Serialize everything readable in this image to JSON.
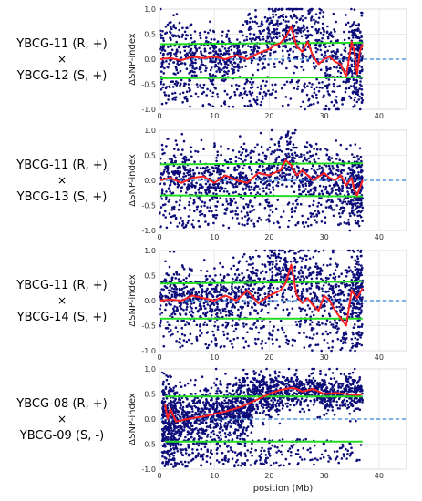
{
  "chart_data": [
    {
      "type": "scatter",
      "cross": {
        "parent1": "YBCG-11 (R, +)",
        "symbol": "×",
        "parent2": "YBCG-12 (S, +)"
      },
      "xlabel": "",
      "ylabel": "ΔSNP-index",
      "xlim": [
        0,
        45
      ],
      "ylim": [
        -1.0,
        1.0
      ],
      "xticks": [
        "0",
        "10",
        "20",
        "30",
        "40"
      ],
      "yticks": [
        "1.0",
        "0.5",
        "0.0",
        "-0.5",
        "-1.0"
      ],
      "grid": true,
      "colors": {
        "points": "#0c0c7a",
        "smoothed": "#ff2020",
        "threshold": "#22dd22",
        "zero_line": "#3388dd"
      },
      "threshold_upper": {
        "x": [
          0,
          37
        ],
        "y": [
          0.3,
          0.33
        ]
      },
      "threshold_lower": {
        "x": [
          0,
          37
        ],
        "y": [
          -0.38,
          -0.36
        ]
      },
      "zero_line": {
        "x": [
          0,
          45
        ],
        "y": [
          0,
          0
        ]
      },
      "smoothed": {
        "x": [
          0,
          2,
          4,
          6,
          8,
          10,
          12,
          14,
          16,
          18,
          20,
          21,
          22,
          23,
          24,
          25,
          26,
          27,
          28,
          29,
          30,
          31,
          32,
          33,
          34,
          35,
          35.5,
          36,
          36.5,
          37
        ],
        "y": [
          0.0,
          0.02,
          -0.02,
          0.05,
          0.02,
          0.05,
          0.0,
          0.08,
          0.0,
          0.12,
          0.2,
          0.28,
          0.32,
          0.45,
          0.65,
          0.25,
          0.15,
          0.35,
          0.05,
          -0.1,
          0.0,
          0.05,
          -0.05,
          -0.1,
          -0.35,
          0.35,
          0.15,
          -0.3,
          0.15,
          0.3
        ]
      },
      "points": {
        "segments": [
          [
            0,
            5,
            0.2,
            0.3
          ],
          [
            5,
            10,
            0.05,
            0.3
          ],
          [
            10,
            15,
            0.05,
            0.25
          ],
          [
            15,
            20,
            0.25,
            0.35
          ],
          [
            20,
            25,
            0.55,
            0.35
          ],
          [
            25,
            30,
            0.3,
            0.45
          ],
          [
            30,
            35,
            -0.05,
            0.45
          ],
          [
            35,
            37,
            0.1,
            0.4
          ]
        ],
        "count": 1400,
        "seed": 11
      }
    },
    {
      "type": "scatter",
      "cross": {
        "parent1": "YBCG-11 (R, +)",
        "symbol": "×",
        "parent2": "YBCG-13 (S, +)"
      },
      "xlabel": "",
      "ylabel": "ΔSNP-index",
      "xlim": [
        0,
        45
      ],
      "ylim": [
        -1.0,
        1.0
      ],
      "xticks": [
        "0",
        "10",
        "20",
        "30",
        "40"
      ],
      "yticks": [
        "1.0",
        "0.5",
        "0.0",
        "-0.5",
        "-1.0"
      ],
      "grid": true,
      "colors": {
        "points": "#0c0c7a",
        "smoothed": "#ff2020",
        "threshold": "#22dd22",
        "zero_line": "#3388dd"
      },
      "threshold_upper": {
        "x": [
          0,
          37
        ],
        "y": [
          0.32,
          0.34
        ]
      },
      "threshold_lower": {
        "x": [
          0,
          37
        ],
        "y": [
          -0.3,
          -0.32
        ]
      },
      "zero_line": {
        "x": [
          0,
          45
        ],
        "y": [
          0,
          0
        ]
      },
      "smoothed": {
        "x": [
          0,
          2,
          4,
          6,
          8,
          10,
          12,
          14,
          16,
          18,
          20,
          22,
          23,
          24,
          25,
          26,
          28,
          30,
          31,
          32,
          33,
          34,
          35,
          35.5,
          36,
          37
        ],
        "y": [
          0.0,
          0.05,
          -0.05,
          0.05,
          0.08,
          -0.05,
          0.1,
          0.0,
          -0.05,
          0.15,
          0.1,
          0.2,
          0.4,
          0.3,
          0.1,
          0.2,
          0.0,
          0.15,
          0.05,
          0.0,
          0.1,
          -0.1,
          0.05,
          -0.2,
          -0.3,
          0.0
        ]
      },
      "points": {
        "segments": [
          [
            0,
            5,
            0.1,
            0.3
          ],
          [
            5,
            10,
            0.0,
            0.28
          ],
          [
            10,
            15,
            0.05,
            0.25
          ],
          [
            15,
            20,
            0.1,
            0.3
          ],
          [
            20,
            25,
            0.3,
            0.3
          ],
          [
            25,
            30,
            0.1,
            0.35
          ],
          [
            30,
            35,
            0.0,
            0.35
          ],
          [
            35,
            37,
            -0.05,
            0.3
          ]
        ],
        "count": 1400,
        "seed": 23
      }
    },
    {
      "type": "scatter",
      "cross": {
        "parent1": "YBCG-11 (R, +)",
        "symbol": "×",
        "parent2": "YBCG-14 (S, +)"
      },
      "xlabel": "",
      "ylabel": "ΔSNP-index",
      "xlim": [
        0,
        45
      ],
      "ylim": [
        -1.0,
        1.0
      ],
      "xticks": [
        "0",
        "10",
        "20",
        "30",
        "40"
      ],
      "yticks": [
        "1.0",
        "0.5",
        "0.0",
        "-0.5",
        "-1.0"
      ],
      "grid": true,
      "colors": {
        "points": "#0c0c7a",
        "smoothed": "#ff2020",
        "threshold": "#22dd22",
        "zero_line": "#3388dd"
      },
      "threshold_upper": {
        "x": [
          0,
          37
        ],
        "y": [
          0.34,
          0.38
        ]
      },
      "threshold_lower": {
        "x": [
          0,
          37
        ],
        "y": [
          -0.36,
          -0.36
        ]
      },
      "zero_line": {
        "x": [
          0,
          45
        ],
        "y": [
          0,
          0
        ]
      },
      "smoothed": {
        "x": [
          0,
          2,
          4,
          6,
          8,
          10,
          12,
          14,
          16,
          18,
          20,
          21,
          22,
          23,
          24,
          25,
          26,
          27,
          28,
          29,
          30,
          31,
          32,
          33,
          34,
          35,
          36,
          37
        ],
        "y": [
          0.0,
          0.02,
          0.0,
          0.1,
          0.05,
          0.0,
          0.1,
          0.0,
          0.2,
          -0.05,
          0.1,
          0.15,
          0.2,
          0.35,
          0.72,
          0.1,
          -0.05,
          0.05,
          -0.1,
          -0.2,
          0.1,
          0.0,
          -0.2,
          -0.35,
          -0.5,
          0.2,
          0.05,
          0.25
        ]
      },
      "points": {
        "segments": [
          [
            0,
            5,
            0.15,
            0.3
          ],
          [
            5,
            10,
            0.1,
            0.3
          ],
          [
            10,
            15,
            0.1,
            0.3
          ],
          [
            15,
            20,
            0.25,
            0.35
          ],
          [
            20,
            25,
            0.5,
            0.35
          ],
          [
            25,
            30,
            0.3,
            0.45
          ],
          [
            30,
            35,
            0.05,
            0.45
          ],
          [
            35,
            37,
            0.2,
            0.4
          ]
        ],
        "count": 1500,
        "seed": 37
      }
    },
    {
      "type": "scatter",
      "cross": {
        "parent1": "YBCG-08 (R, +)",
        "symbol": "×",
        "parent2": "YBCG-09 (S, -)"
      },
      "xlabel": "position (Mb)",
      "ylabel": "ΔSNP-index",
      "xlim": [
        0,
        45
      ],
      "ylim": [
        -1.0,
        1.0
      ],
      "xticks": [
        "0",
        "10",
        "20",
        "30",
        "40"
      ],
      "yticks": [
        "1.0",
        "0.5",
        "0.0",
        "-0.5",
        "-1.0"
      ],
      "grid": true,
      "colors": {
        "points": "#0c0c7a",
        "smoothed": "#ff2020",
        "threshold": "#22dd22",
        "zero_line": "#3388dd"
      },
      "threshold_upper": {
        "x": [
          1,
          37
        ],
        "y": [
          0.45,
          0.45
        ]
      },
      "threshold_lower": {
        "x": [
          1,
          37
        ],
        "y": [
          -0.45,
          -0.45
        ]
      },
      "zero_line": {
        "x": [
          0,
          45
        ],
        "y": [
          0,
          0
        ]
      },
      "smoothed": {
        "x": [
          1,
          1.5,
          2,
          3,
          5,
          8,
          10,
          12,
          15,
          18,
          20,
          22,
          24,
          25,
          26,
          28,
          30,
          32,
          34,
          36,
          37
        ],
        "y": [
          0.3,
          0.0,
          0.2,
          -0.05,
          0.0,
          0.05,
          0.1,
          0.15,
          0.25,
          0.4,
          0.5,
          0.58,
          0.62,
          0.6,
          0.55,
          0.6,
          0.5,
          0.52,
          0.5,
          0.48,
          0.5
        ]
      },
      "points": {
        "segments": [
          [
            0.5,
            3,
            0.0,
            0.35
          ],
          [
            3,
            8,
            0.0,
            0.3
          ],
          [
            8,
            13,
            0.1,
            0.3
          ],
          [
            13,
            17,
            0.2,
            0.3
          ],
          [
            17,
            22,
            0.5,
            0.22
          ],
          [
            22,
            30,
            0.58,
            0.18
          ],
          [
            30,
            37,
            0.5,
            0.2
          ]
        ],
        "count": 2200,
        "seed": 51
      }
    }
  ]
}
